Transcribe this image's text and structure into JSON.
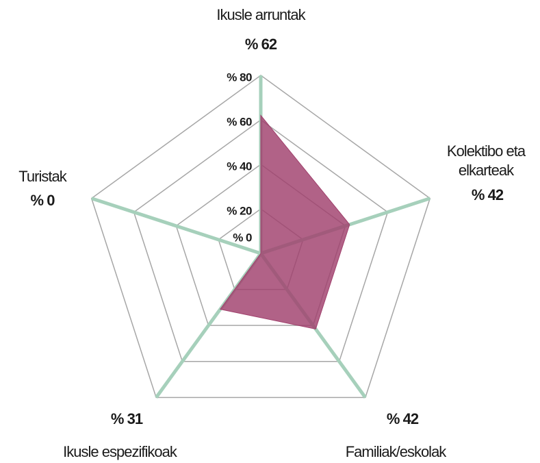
{
  "chart_data": {
    "type": "radar",
    "categories": [
      "Ikusle arruntak",
      "Kolektibo eta elkarteak",
      "Familiak/eskolak",
      "Ikusle espezifikoak",
      "Turistak"
    ],
    "values": [
      62,
      42,
      42,
      31,
      0
    ],
    "value_labels": [
      "% 62",
      "% 42",
      "% 42",
      "% 31",
      "% 0"
    ],
    "color": "#a0406c",
    "axis_color": "#a6d0bb",
    "grid_color": "#a6a6a6",
    "ylim": [
      0,
      80
    ],
    "yticks": [
      {
        "value": 0,
        "label": "% 0"
      },
      {
        "value": 20,
        "label": "% 20"
      },
      {
        "value": 40,
        "label": "% 40"
      },
      {
        "value": 60,
        "label": "% 60"
      },
      {
        "value": 80,
        "label": "% 80"
      }
    ],
    "grid": true
  }
}
